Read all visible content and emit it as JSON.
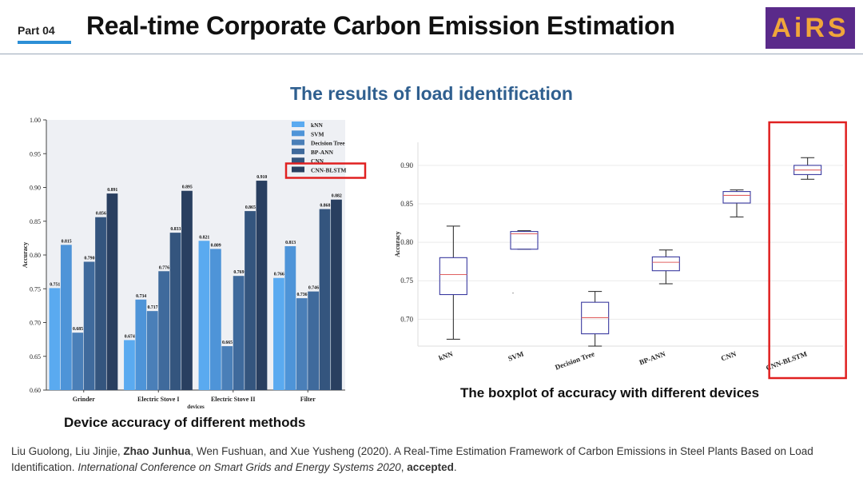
{
  "header": {
    "part_label": "Part 04",
    "title": "Real-time Corporate Carbon Emission Estimation",
    "logo_text": "AiRS"
  },
  "section_title": "The results of load identification",
  "chart_data": [
    {
      "type": "bar",
      "title": "",
      "xlabel": "devices",
      "ylabel": "Accuracy",
      "ylim": [
        0.6,
        1.0
      ],
      "yticks": [
        "0.60",
        "0.65",
        "0.70",
        "0.75",
        "0.80",
        "0.85",
        "0.90",
        "0.95",
        "1.00"
      ],
      "categories": [
        "Grinder",
        "Electric Stove I",
        "Electric Stove II",
        "Filter"
      ],
      "colors": [
        "#5aaaf0",
        "#4e94d8",
        "#4a7fb8",
        "#3f6a9c",
        "#34557e",
        "#293f60"
      ],
      "series": [
        {
          "name": "kNN",
          "values": [
            0.751,
            0.674,
            0.821,
            0.766
          ],
          "labels": [
            "0.751",
            "0.674",
            "0.821",
            "0.766"
          ]
        },
        {
          "name": "SVM",
          "values": [
            0.815,
            0.734,
            0.809,
            0.813
          ],
          "labels": [
            "0.815",
            "0.734",
            "0.809",
            "0.813"
          ]
        },
        {
          "name": "Decision Tree",
          "values": [
            0.685,
            0.717,
            0.665,
            0.736
          ],
          "labels": [
            "0.685",
            "0.717",
            "0.665",
            "0.736"
          ]
        },
        {
          "name": "BP-ANN",
          "values": [
            0.79,
            0.776,
            0.769,
            0.746
          ],
          "labels": [
            "0.790",
            "0.776",
            "0.769",
            "0.746"
          ]
        },
        {
          "name": "CNN",
          "values": [
            0.856,
            0.833,
            0.865,
            0.868
          ],
          "labels": [
            "0.856",
            "0.833",
            "0.865",
            "0.868"
          ]
        },
        {
          "name": "CNN-BLSTM",
          "values": [
            0.891,
            0.895,
            0.91,
            0.882
          ],
          "labels": [
            "0.891",
            "0.895",
            "0.910",
            "0.882"
          ]
        }
      ],
      "legend_position": "top-right",
      "highlighted_legend": "CNN-BLSTM",
      "caption": "Device accuracy of different methods"
    },
    {
      "type": "boxplot",
      "title": "",
      "ylabel": "Accuracy",
      "ylim": [
        0.665,
        0.93
      ],
      "yticks": [
        "0.70",
        "0.75",
        "0.80",
        "0.85",
        "0.90"
      ],
      "categories": [
        "kNN",
        "SVM",
        "Decision Tree",
        "BP-ANN",
        "CNN",
        "CNN-BLSTM"
      ],
      "boxes": [
        {
          "min": 0.674,
          "q1": 0.732,
          "median": 0.758,
          "q3": 0.78,
          "max": 0.821
        },
        {
          "min": 0.791,
          "q1": 0.791,
          "median": 0.811,
          "q3": 0.814,
          "max": 0.815
        },
        {
          "min": 0.665,
          "q1": 0.681,
          "median": 0.702,
          "q3": 0.722,
          "max": 0.736
        },
        {
          "min": 0.746,
          "q1": 0.763,
          "median": 0.774,
          "q3": 0.781,
          "max": 0.79
        },
        {
          "min": 0.833,
          "q1": 0.851,
          "median": 0.861,
          "q3": 0.866,
          "max": 0.868
        },
        {
          "min": 0.882,
          "q1": 0.888,
          "median": 0.894,
          "q3": 0.9,
          "max": 0.91
        }
      ],
      "outliers": [
        {
          "category": "SVM",
          "value": 0.734
        }
      ],
      "highlighted_category": "CNN-BLSTM",
      "caption": "The boxplot of accuracy with different devices"
    }
  ],
  "reference": {
    "authors_before": "Liu Guolong, Liu Jinjie, ",
    "author_bold": "Zhao Junhua",
    "authors_after": ", Wen Fushuan, and Xue Yusheng (2020). A Real-Time Estimation Framework of Carbon Emissions in Steel Plants Based on Load Identification. ",
    "venue": "International Conference on Smart Grids and Energy Systems 2020",
    "sep": ", ",
    "status": "accepted",
    "end": "."
  },
  "colors": {
    "accent_blue": "#2c8fd6",
    "title_blue": "#2f5f8f",
    "highlight_red": "#e02020",
    "logo_bg": "#5a2a8a",
    "logo_fg": "#f0a63a"
  }
}
